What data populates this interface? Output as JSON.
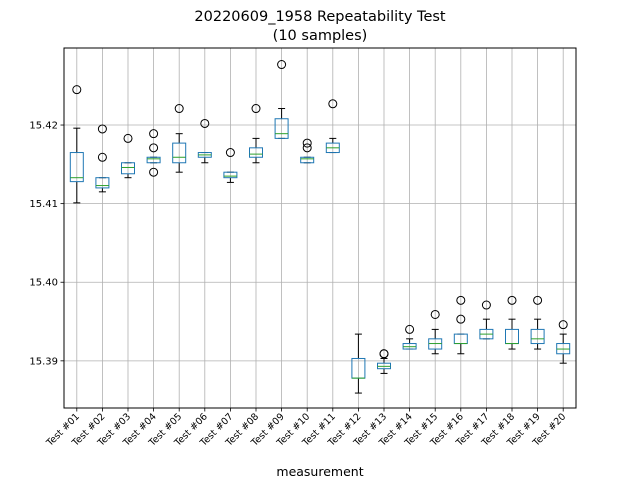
{
  "chart_data": {
    "type": "box",
    "title": "20220609_1958 Repeatability Test",
    "subtitle": "(10 samples)",
    "xlabel": "measurement",
    "ylabel": "",
    "ylim": [
      15.384,
      15.4298
    ],
    "yticks": [
      15.39,
      15.4,
      15.41,
      15.42
    ],
    "ytick_labels": [
      "15.39",
      "15.40",
      "15.41",
      "15.42"
    ],
    "grid": true,
    "colors": {
      "box": "#1f77b4",
      "median": "#2ca02c",
      "whisker": "#000000",
      "flier": "#000000",
      "grid": "#b0b0b0"
    },
    "boxes": [
      {
        "label": "Test #01",
        "whislo": 15.4101,
        "q1": 15.4128,
        "med": 15.4133,
        "q3": 15.4165,
        "whishi": 15.4196,
        "fliers": [
          15.4245
        ]
      },
      {
        "label": "Test #02",
        "whislo": 15.4115,
        "q1": 15.412,
        "med": 15.4123,
        "q3": 15.4133,
        "whishi": 15.4133,
        "fliers": [
          15.4195,
          15.4159
        ]
      },
      {
        "label": "Test #03",
        "whislo": 15.4133,
        "q1": 15.4138,
        "med": 15.4146,
        "q3": 15.4152,
        "whishi": 15.4152,
        "fliers": [
          15.4183
        ]
      },
      {
        "label": "Test #04",
        "whislo": 15.4152,
        "q1": 15.4152,
        "med": 15.4157,
        "q3": 15.4159,
        "whishi": 15.4159,
        "fliers": [
          15.4189,
          15.4171,
          15.414
        ]
      },
      {
        "label": "Test #05",
        "whislo": 15.414,
        "q1": 15.4152,
        "med": 15.4159,
        "q3": 15.4177,
        "whishi": 15.4189,
        "fliers": [
          15.4221
        ]
      },
      {
        "label": "Test #06",
        "whislo": 15.4152,
        "q1": 15.4159,
        "med": 15.4162,
        "q3": 15.4165,
        "whishi": 15.4165,
        "fliers": [
          15.4202
        ]
      },
      {
        "label": "Test #07",
        "whislo": 15.4127,
        "q1": 15.4133,
        "med": 15.4135,
        "q3": 15.414,
        "whishi": 15.414,
        "fliers": [
          15.4165
        ]
      },
      {
        "label": "Test #08",
        "whislo": 15.4152,
        "q1": 15.4159,
        "med": 15.4163,
        "q3": 15.4171,
        "whishi": 15.4183,
        "fliers": [
          15.4221
        ]
      },
      {
        "label": "Test #09",
        "whislo": 15.4183,
        "q1": 15.4183,
        "med": 15.4189,
        "q3": 15.4208,
        "whishi": 15.4221,
        "fliers": [
          15.4277
        ]
      },
      {
        "label": "Test #10",
        "whislo": 15.4152,
        "q1": 15.4152,
        "med": 15.4157,
        "q3": 15.4159,
        "whishi": 15.4159,
        "fliers": [
          15.4177,
          15.4171
        ]
      },
      {
        "label": "Test #11",
        "whislo": 15.4165,
        "q1": 15.4165,
        "med": 15.4171,
        "q3": 15.4177,
        "whishi": 15.4183,
        "fliers": [
          15.4227
        ]
      },
      {
        "label": "Test #12",
        "whislo": 15.3859,
        "q1": 15.3878,
        "med": 15.3878,
        "q3": 15.3903,
        "whishi": 15.3934,
        "fliers": []
      },
      {
        "label": "Test #13",
        "whislo": 15.3884,
        "q1": 15.389,
        "med": 15.3893,
        "q3": 15.3897,
        "whishi": 15.3903,
        "fliers": [
          15.3909,
          15.3909
        ]
      },
      {
        "label": "Test #14",
        "whislo": 15.3915,
        "q1": 15.3915,
        "med": 15.3918,
        "q3": 15.3922,
        "whishi": 15.3928,
        "fliers": [
          15.394
        ]
      },
      {
        "label": "Test #15",
        "whislo": 15.3909,
        "q1": 15.3915,
        "med": 15.3922,
        "q3": 15.3928,
        "whishi": 15.394,
        "fliers": [
          15.3959
        ]
      },
      {
        "label": "Test #16",
        "whislo": 15.3909,
        "q1": 15.3922,
        "med": 15.3922,
        "q3": 15.3934,
        "whishi": 15.3934,
        "fliers": [
          15.3977,
          15.3953
        ]
      },
      {
        "label": "Test #17",
        "whislo": 15.3928,
        "q1": 15.3928,
        "med": 15.3934,
        "q3": 15.394,
        "whishi": 15.3953,
        "fliers": [
          15.3971
        ]
      },
      {
        "label": "Test #18",
        "whislo": 15.3915,
        "q1": 15.3922,
        "med": 15.3922,
        "q3": 15.394,
        "whishi": 15.3953,
        "fliers": [
          15.3977
        ]
      },
      {
        "label": "Test #19",
        "whislo": 15.3915,
        "q1": 15.3922,
        "med": 15.3928,
        "q3": 15.394,
        "whishi": 15.3953,
        "fliers": [
          15.3977
        ]
      },
      {
        "label": "Test #20",
        "whislo": 15.3897,
        "q1": 15.3909,
        "med": 15.3915,
        "q3": 15.3922,
        "whishi": 15.3934,
        "fliers": [
          15.3946
        ]
      }
    ]
  }
}
